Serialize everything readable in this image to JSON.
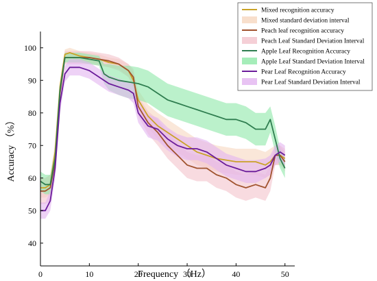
{
  "chart_data": {
    "type": "line",
    "xlabel": "Frequency （Hz）",
    "ylabel": "Accuracy （%）",
    "xlim": [
      0,
      52
    ],
    "ylim": [
      33,
      105
    ],
    "xticks": [
      0,
      10,
      20,
      30,
      40,
      50
    ],
    "yticks": [
      40,
      50,
      60,
      70,
      80,
      90,
      100
    ],
    "grid": false,
    "legend_position": "top-right",
    "series": [
      {
        "name": "Mixed recognition accuracy",
        "band_name": "Mixed standard deviation interval",
        "color": "#c9a227",
        "band_color": "#f6d7bf",
        "x": [
          0,
          1,
          2,
          3,
          4,
          5,
          6,
          8,
          10,
          12,
          14,
          16,
          18,
          19,
          20,
          22,
          24,
          26,
          28,
          30,
          32,
          34,
          36,
          38,
          40,
          42,
          44,
          46,
          47,
          48,
          49,
          50
        ],
        "y": [
          57,
          57,
          58,
          68,
          88,
          98,
          98.5,
          97.5,
          97,
          96.5,
          95.5,
          95,
          93,
          90,
          84,
          79,
          76,
          74,
          72,
          70,
          68,
          67,
          66,
          65.5,
          65,
          65,
          65,
          64,
          65,
          67,
          67,
          66
        ],
        "sd": [
          3,
          3,
          3,
          3,
          2,
          1.5,
          1.5,
          1.5,
          1.5,
          1.5,
          1.5,
          1.5,
          2,
          2.5,
          3,
          3.5,
          4,
          4,
          4,
          4,
          4,
          4,
          4,
          4,
          4,
          4,
          4,
          4,
          4,
          3,
          3,
          3
        ]
      },
      {
        "name": "Peach leaf recognition accuracy",
        "band_name": "Peach Leaf Standard Deviation Interval",
        "color": "#a0522d",
        "band_color": "#f3c3cc",
        "x": [
          0,
          1,
          2,
          3,
          4,
          5,
          6,
          8,
          10,
          12,
          14,
          16,
          18,
          19,
          20,
          22,
          24,
          26,
          28,
          30,
          32,
          34,
          36,
          38,
          40,
          42,
          44,
          46,
          47,
          48,
          49,
          50
        ],
        "y": [
          56,
          56,
          57,
          65,
          86,
          97,
          97,
          97,
          97,
          96.5,
          96,
          95,
          93,
          91,
          82,
          77,
          74,
          70,
          67,
          64,
          63,
          63,
          61,
          60,
          58,
          57,
          58,
          57,
          60,
          67,
          67,
          65
        ],
        "sd": [
          4,
          4,
          4,
          4,
          3,
          2,
          2,
          2,
          2,
          2,
          2,
          2,
          2,
          2.5,
          3,
          3.5,
          4,
          4,
          4,
          4,
          4,
          4,
          4,
          4,
          4,
          4,
          4,
          4,
          4,
          3,
          3,
          3
        ]
      },
      {
        "name": "Apple Leaf Recognition Accuracy",
        "band_name": "Apple Leaf Standard Deviation Interval",
        "color": "#2e7d4f",
        "band_color": "#8ee8a8",
        "x": [
          0,
          1,
          2,
          3,
          4,
          5,
          6,
          8,
          10,
          12,
          13,
          14,
          16,
          18,
          20,
          22,
          24,
          26,
          28,
          30,
          32,
          34,
          36,
          38,
          40,
          42,
          44,
          46,
          47,
          48,
          49,
          50
        ],
        "y": [
          59,
          58,
          58,
          66,
          87,
          97,
          97,
          97,
          96.5,
          96,
          92,
          91,
          90,
          89.5,
          89,
          88,
          86,
          84,
          83,
          82,
          81,
          80,
          79,
          78,
          78,
          77,
          75,
          75,
          78,
          72,
          66,
          63
        ],
        "sd": [
          3,
          3,
          3,
          3,
          2,
          1.5,
          1.5,
          1.5,
          1.5,
          1.5,
          3,
          4,
          4.5,
          5,
          5,
          5,
          5,
          5,
          5,
          5,
          5,
          5,
          5,
          5,
          5,
          5,
          5,
          5,
          4,
          4,
          3,
          3
        ]
      },
      {
        "name": "Pear Leaf Recognition Accuracy",
        "band_name": "Pear Leaf Standard Deviation Interval",
        "color": "#6a1b9a",
        "band_color": "#e2b4f0",
        "x": [
          0,
          1,
          2,
          3,
          4,
          5,
          6,
          8,
          10,
          12,
          14,
          16,
          18,
          19,
          20,
          22,
          24,
          26,
          28,
          30,
          32,
          34,
          36,
          38,
          40,
          42,
          44,
          46,
          47,
          48,
          49,
          50
        ],
        "y": [
          50,
          50,
          53,
          63,
          83,
          92,
          94,
          94,
          93,
          91,
          89,
          88,
          87,
          86,
          80,
          76,
          75,
          72,
          70,
          69,
          69,
          68,
          66,
          64,
          63,
          62,
          62,
          63,
          64,
          67,
          68,
          67
        ],
        "sd": [
          2.5,
          2.5,
          3,
          3,
          3,
          2.5,
          2.5,
          2.5,
          2.5,
          2.5,
          2.5,
          2.5,
          2.5,
          3,
          3,
          3.5,
          3.5,
          3.5,
          3.5,
          3.5,
          3.5,
          3.5,
          3.5,
          3.5,
          3.5,
          3.5,
          3.5,
          3,
          3,
          3,
          3,
          3
        ]
      }
    ]
  }
}
